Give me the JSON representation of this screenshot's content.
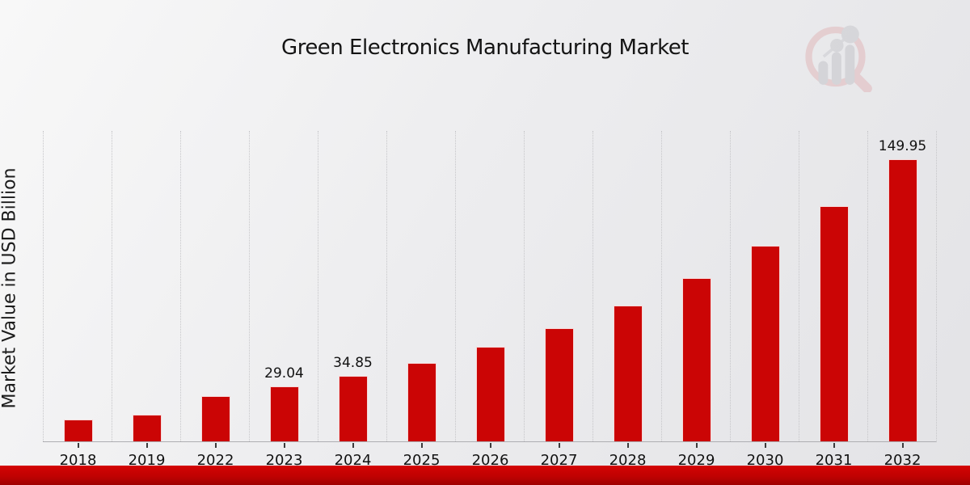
{
  "header": {
    "title": "Green Electronics Manufacturing Market"
  },
  "y_axis": {
    "label": "Market Value in USD Billion"
  },
  "logo": {
    "name": "market-research-future-watermark",
    "ring_color": "#dfa9ad",
    "bars_color": "#b9b9bf"
  },
  "chart_data": {
    "type": "bar",
    "title": "Green Electronics Manufacturing Market",
    "xlabel": "",
    "ylabel": "Market Value in USD Billion",
    "categories": [
      "2018",
      "2019",
      "2022",
      "2023",
      "2024",
      "2025",
      "2026",
      "2027",
      "2028",
      "2029",
      "2030",
      "2031",
      "2032"
    ],
    "values": [
      11.7,
      14.0,
      24.2,
      29.04,
      34.85,
      41.82,
      50.18,
      60.22,
      72.26,
      86.72,
      104.06,
      124.87,
      149.95
    ],
    "data_labels": [
      "",
      "",
      "",
      "29.04",
      "34.85",
      "",
      "",
      "",
      "",
      "",
      "",
      "",
      "149.95"
    ],
    "bar_color": "#cb0505",
    "ylim": [
      0,
      160
    ],
    "grid": "vertical-dotted",
    "legend": "none"
  },
  "footer": {
    "accent_color": "#c00202"
  }
}
